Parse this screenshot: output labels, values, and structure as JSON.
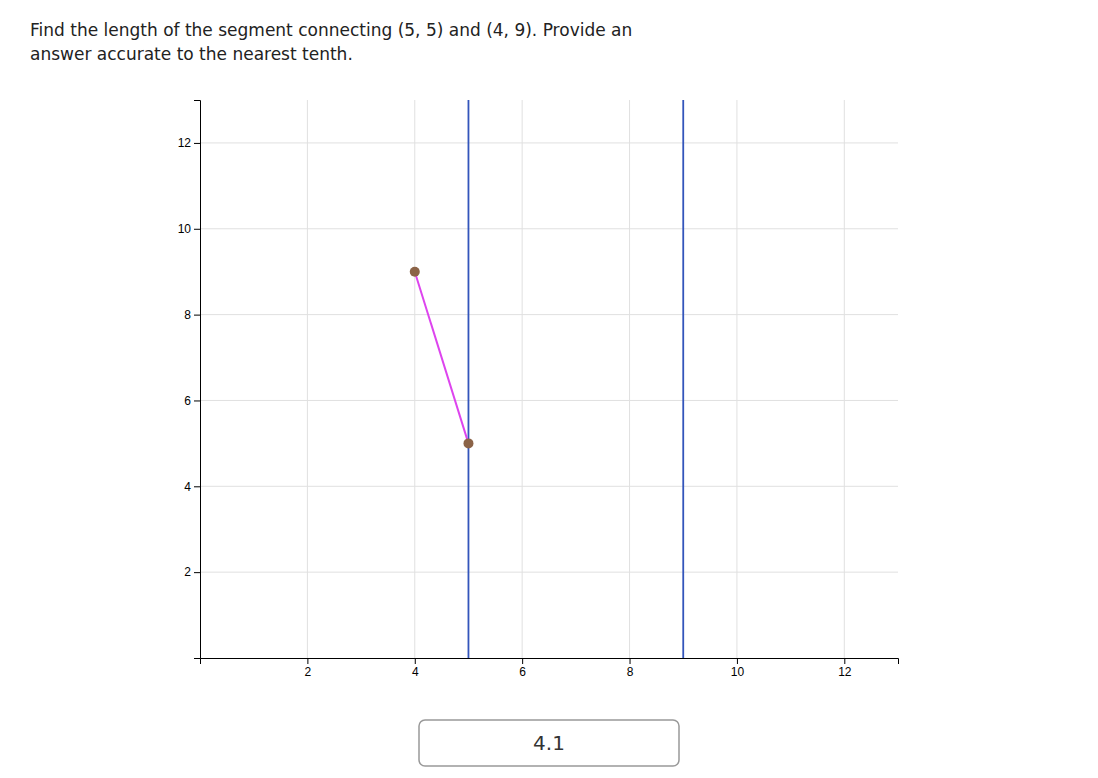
{
  "chart_data": {
    "type": "line",
    "title": "Find the length of the segment connecting (5, 5) and (4, 9). Provide an",
    "subtitle": "answer accurate to the nearest tenth.",
    "x": [
      4,
      5
    ],
    "series": [
      {
        "type": "line",
        "color": "#dd44ee",
        "values": [
          9,
          5
        ]
      },
      {
        "type": "scatter",
        "color": "#8B6347",
        "marker": "circle",
        "values": [
          9,
          5
        ]
      }
    ],
    "xlim": [
      0,
      13
    ],
    "ylim": [
      0,
      13
    ],
    "xticks": [
      2,
      4,
      6,
      8,
      10,
      12
    ],
    "yticks": [
      2,
      4,
      6,
      8,
      10,
      12
    ],
    "grid": true,
    "reference_lines": {
      "x": [
        5,
        9
      ],
      "color": "#3355bb"
    },
    "annotations": [
      "4.1"
    ]
  }
}
